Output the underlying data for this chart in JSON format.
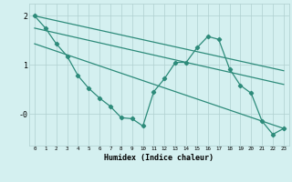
{
  "zigzag": {
    "x": [
      0,
      1,
      2,
      3,
      4,
      5,
      6,
      7,
      8,
      9,
      10,
      11,
      12,
      13,
      14,
      15,
      16,
      17,
      18,
      19,
      20,
      21,
      22,
      23
    ],
    "y": [
      2.0,
      1.75,
      1.43,
      1.18,
      0.78,
      0.52,
      0.32,
      0.15,
      -0.08,
      -0.1,
      -0.25,
      0.45,
      0.72,
      1.05,
      1.05,
      1.35,
      1.58,
      1.52,
      0.92,
      0.58,
      0.42,
      -0.15,
      -0.42,
      -0.3
    ]
  },
  "line_top": {
    "x": [
      0,
      23
    ],
    "y": [
      2.0,
      0.88
    ]
  },
  "line_mid": {
    "x": [
      0,
      23
    ],
    "y": [
      1.75,
      0.6
    ]
  },
  "line_bottom": {
    "x": [
      0,
      23
    ],
    "y": [
      1.43,
      -0.3
    ]
  },
  "color": "#2d8b7a",
  "bg_color": "#d4f0f0",
  "grid_major_color": "#b0d0d0",
  "grid_minor_color": "#c0e0e0",
  "xlabel": "Humidex (Indice chaleur)",
  "ylim": [
    -0.65,
    2.25
  ],
  "xlim": [
    -0.5,
    23.5
  ]
}
